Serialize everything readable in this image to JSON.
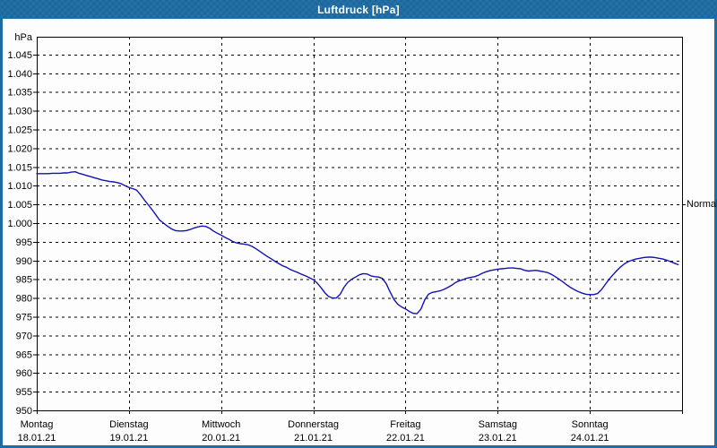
{
  "window": {
    "titlebar_color": "#1e6ca4",
    "border_color": "#1e6ca4",
    "background": "#ffffff"
  },
  "chart_data": {
    "type": "line",
    "title": "Luftdruck [hPa]",
    "ylabel": "hPa",
    "unit": "hPa",
    "ylim": [
      950,
      1050
    ],
    "grid": "dashed",
    "legend_position": "none",
    "y_ticks": [
      {
        "v": 1045,
        "label": "1.045"
      },
      {
        "v": 1040,
        "label": "1.040"
      },
      {
        "v": 1035,
        "label": "1.035"
      },
      {
        "v": 1030,
        "label": "1.030"
      },
      {
        "v": 1025,
        "label": "1.025"
      },
      {
        "v": 1020,
        "label": "1.020"
      },
      {
        "v": 1015,
        "label": "1.015"
      },
      {
        "v": 1010,
        "label": "1.010"
      },
      {
        "v": 1005,
        "label": "1.005"
      },
      {
        "v": 1000,
        "label": "1.000"
      },
      {
        "v": 995,
        "label": "995"
      },
      {
        "v": 990,
        "label": "990"
      },
      {
        "v": 985,
        "label": "985"
      },
      {
        "v": 980,
        "label": "980"
      },
      {
        "v": 975,
        "label": "975"
      },
      {
        "v": 970,
        "label": "970"
      },
      {
        "v": 965,
        "label": "965"
      },
      {
        "v": 960,
        "label": "960"
      },
      {
        "v": 955,
        "label": "955"
      },
      {
        "v": 950,
        "label": "950"
      }
    ],
    "x_days": [
      {
        "name": "Montag",
        "date": "18.01.21"
      },
      {
        "name": "Dienstag",
        "date": "19.01.21"
      },
      {
        "name": "Mittwoch",
        "date": "20.01.21"
      },
      {
        "name": "Donnerstag",
        "date": "21.01.21"
      },
      {
        "name": "Freitag",
        "date": "22.01.21"
      },
      {
        "name": "Samstag",
        "date": "23.01.21"
      },
      {
        "name": "Sonntag",
        "date": "24.01.21"
      }
    ],
    "normal_annotation": {
      "label": "Normal",
      "value": 1005
    },
    "series": [
      {
        "name": "Luftdruck",
        "color": "#1212b5",
        "x_start_hour": 0,
        "x_step_hours": 1,
        "values": [
          1013.2,
          1013.2,
          1013.2,
          1013.2,
          1013.3,
          1013.3,
          1013.3,
          1013.4,
          1013.4,
          1013.6,
          1013.7,
          1013.3,
          1013.0,
          1012.7,
          1012.4,
          1012.1,
          1011.8,
          1011.5,
          1011.3,
          1011.1,
          1011.0,
          1010.8,
          1010.5,
          1010.0,
          1009.5,
          1009.2,
          1008.8,
          1007.6,
          1006.2,
          1004.9,
          1003.6,
          1002.2,
          1000.8,
          1000.0,
          999.2,
          998.5,
          998.0,
          997.9,
          997.9,
          998.0,
          998.3,
          998.7,
          999.0,
          999.2,
          999.1,
          998.6,
          997.9,
          997.3,
          996.8,
          996.2,
          995.7,
          995.1,
          994.7,
          994.5,
          994.4,
          994.2,
          993.8,
          993.2,
          992.5,
          991.8,
          991.1,
          990.5,
          989.8,
          989.2,
          988.6,
          988.2,
          987.6,
          987.2,
          986.8,
          986.3,
          985.9,
          985.4,
          984.9,
          984.0,
          982.8,
          981.4,
          980.4,
          980.0,
          980.0,
          981.0,
          982.9,
          984.2,
          985.0,
          985.6,
          986.2,
          986.5,
          986.4,
          985.9,
          985.7,
          985.6,
          985.2,
          983.8,
          981.6,
          979.6,
          978.3,
          977.6,
          977.1,
          976.4,
          975.9,
          975.8,
          977.0,
          979.5,
          981.0,
          981.5,
          981.7,
          981.9,
          982.3,
          982.8,
          983.4,
          984.1,
          984.6,
          984.9,
          985.3,
          985.5,
          985.7,
          986.1,
          986.6,
          987.0,
          987.3,
          987.5,
          987.7,
          987.8,
          987.9,
          988.0,
          988.0,
          987.9,
          987.8,
          987.4,
          987.2,
          987.3,
          987.4,
          987.2,
          987.0,
          986.8,
          986.3,
          985.7,
          985.0,
          984.3,
          983.5,
          982.8,
          982.2,
          981.7,
          981.3,
          981.0,
          980.9,
          980.9,
          981.2,
          982.2,
          983.6,
          985.0,
          986.2,
          987.3,
          988.3,
          989.1,
          989.7,
          990.1,
          990.4,
          990.6,
          990.8,
          990.9,
          990.9,
          990.8,
          990.6,
          990.4,
          990.1,
          989.7,
          989.3,
          988.9
        ]
      }
    ]
  }
}
